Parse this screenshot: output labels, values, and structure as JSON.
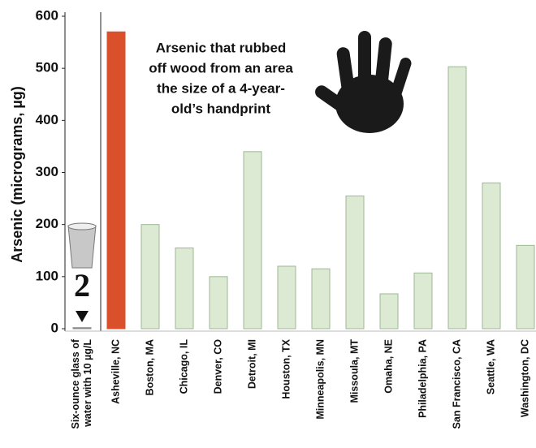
{
  "chart_data": {
    "type": "bar",
    "y_label": "Arsenic (micrograms, µg)",
    "annotation": [
      "Arsenic that rubbed",
      "off wood from an area",
      "the size of a 4-year-",
      "old’s handprint"
    ],
    "categories": [
      "Six-ounce glass of water with 10 µg/L",
      "Asheville, NC",
      "Boston, MA",
      "Chicago, IL",
      "Denver, CO",
      "Detroit, MI",
      "Houston, TX",
      "Minneapolis, MN",
      "Missoula, MT",
      "Omaha, NE",
      "Philadelphia, PA",
      "San Francisco, CA",
      "Seattle, WA",
      "Washington, DC"
    ],
    "values": [
      2,
      570,
      200,
      155,
      100,
      340,
      120,
      115,
      255,
      67,
      107,
      503,
      280,
      160
    ],
    "colors": [
      "#8a8a8a",
      "#d9502a",
      "#dce9d3",
      "#dce9d3",
      "#dce9d3",
      "#dce9d3",
      "#dce9d3",
      "#dce9d3",
      "#dce9d3",
      "#dce9d3",
      "#dce9d3",
      "#dce9d3",
      "#dce9d3",
      "#dce9d3"
    ],
    "ylim": [
      0,
      600
    ],
    "yticks": [
      0,
      100,
      200,
      300,
      400,
      500,
      600
    ]
  }
}
